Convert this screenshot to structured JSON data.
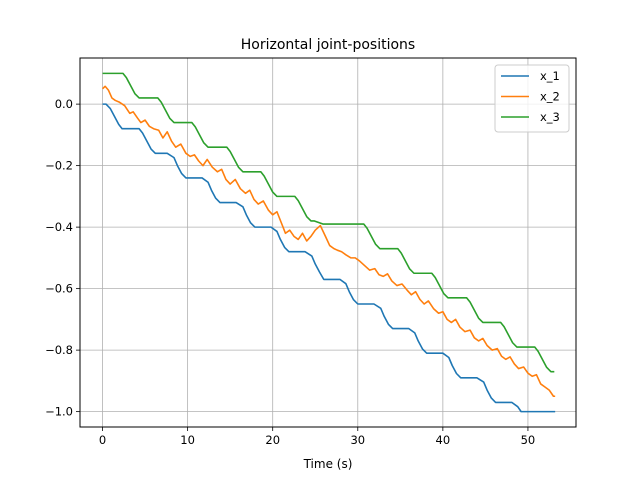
{
  "chart_data": {
    "type": "line",
    "title": "Horizontal joint-positions",
    "xlabel": "Time (s)",
    "ylabel": "",
    "xlim": [
      -2.65,
      55.65
    ],
    "ylim": [
      -1.05,
      0.15
    ],
    "xticks": [
      0,
      10,
      20,
      30,
      40,
      50
    ],
    "yticks": [
      0.0,
      -0.2,
      -0.4,
      -0.6,
      -0.8,
      -1.0
    ],
    "xtick_labels": [
      "0",
      "10",
      "20",
      "30",
      "40",
      "50"
    ],
    "ytick_labels": [
      "0.0",
      "−0.2",
      "−0.4",
      "−0.6",
      "−0.8",
      "−1.0"
    ],
    "grid": true,
    "legend": {
      "position": "top-right"
    },
    "series": [
      {
        "name": "x_1",
        "color": "#1f77b4",
        "x": [
          0,
          0.4,
          0.9,
          1.4,
          1.9,
          2.3,
          3.3,
          4.3,
          4.7,
          5.2,
          5.7,
          6.2,
          6.6,
          7.6,
          8.4,
          8.8,
          9.3,
          9.8,
          10.3,
          10.7,
          11.7,
          12.4,
          12.8,
          13.3,
          13.8,
          14.3,
          14.7,
          15.7,
          16.5,
          16.9,
          17.4,
          17.9,
          18.4,
          18.8,
          19.8,
          20.5,
          20.9,
          21.4,
          21.9,
          22.4,
          22.8,
          23.8,
          24.6,
          25.0,
          25.5,
          26.0,
          26.5,
          26.9,
          27.9,
          28.6,
          29.0,
          29.5,
          30.0,
          30.5,
          30.9,
          31.9,
          32.7,
          33.1,
          33.6,
          34.1,
          34.6,
          35.0,
          36.0,
          36.7,
          37.1,
          37.6,
          38.1,
          38.6,
          39.0,
          40.0,
          40.7,
          41.1,
          41.6,
          42.1,
          42.6,
          43.0,
          44.0,
          44.8,
          45.2,
          45.7,
          46.2,
          46.7,
          47.1,
          48.1,
          48.8,
          49.2,
          49.7,
          50.2,
          50.7,
          51.1,
          52.1,
          53.2
        ],
        "y": [
          0.0,
          0.0,
          -0.014,
          -0.04,
          -0.066,
          -0.08,
          -0.08,
          -0.08,
          -0.094,
          -0.12,
          -0.146,
          -0.16,
          -0.16,
          -0.16,
          -0.174,
          -0.2,
          -0.226,
          -0.24,
          -0.24,
          -0.24,
          -0.24,
          -0.254,
          -0.28,
          -0.306,
          -0.32,
          -0.32,
          -0.32,
          -0.32,
          -0.334,
          -0.36,
          -0.386,
          -0.4,
          -0.4,
          -0.4,
          -0.4,
          -0.414,
          -0.44,
          -0.466,
          -0.48,
          -0.48,
          -0.48,
          -0.48,
          -0.494,
          -0.52,
          -0.546,
          -0.57,
          -0.57,
          -0.57,
          -0.57,
          -0.584,
          -0.61,
          -0.636,
          -0.65,
          -0.65,
          -0.65,
          -0.65,
          -0.664,
          -0.69,
          -0.716,
          -0.73,
          -0.73,
          -0.73,
          -0.73,
          -0.744,
          -0.77,
          -0.796,
          -0.81,
          -0.81,
          -0.81,
          -0.81,
          -0.824,
          -0.85,
          -0.876,
          -0.89,
          -0.89,
          -0.89,
          -0.89,
          -0.904,
          -0.93,
          -0.956,
          -0.97,
          -0.97,
          -0.97,
          -0.97,
          -0.984,
          -1.0,
          -1.0,
          -1.0,
          -1.0,
          -1.0,
          -1.0,
          -1.0
        ]
      },
      {
        "name": "x_2",
        "color": "#ff7f0e",
        "x": [
          0,
          0.3,
          0.7,
          1.1,
          1.5,
          2.0,
          2.6,
          3.2,
          3.6,
          4.1,
          4.5,
          5.0,
          5.5,
          6.0,
          6.6,
          7.1,
          7.6,
          8.1,
          8.6,
          9.2,
          9.8,
          10.3,
          10.8,
          11.3,
          11.8,
          12.3,
          12.9,
          13.5,
          14.0,
          14.5,
          15.0,
          15.6,
          16.2,
          16.8,
          17.3,
          17.8,
          18.3,
          18.9,
          19.5,
          20.0,
          20.5,
          21.0,
          21.5,
          22.0,
          22.5,
          23.0,
          23.5,
          24.0,
          24.5,
          25.0,
          25.6,
          26.2,
          26.7,
          27.2,
          27.6,
          28.1,
          28.6,
          29.2,
          29.7,
          30.2,
          30.8,
          31.4,
          32.0,
          32.5,
          33.0,
          33.5,
          34.0,
          34.6,
          35.2,
          35.8,
          36.3,
          36.8,
          37.3,
          37.8,
          38.3,
          38.9,
          39.5,
          40.0,
          40.5,
          41.0,
          41.5,
          42.0,
          42.6,
          43.2,
          43.7,
          44.2,
          44.7,
          45.2,
          45.8,
          46.4,
          46.9,
          47.4,
          47.9,
          48.4,
          48.9,
          49.5,
          50.0,
          50.5,
          51.0,
          51.5,
          52.0,
          52.5,
          53.0,
          53.2
        ],
        "y": [
          0.05,
          0.058,
          0.045,
          0.02,
          0.012,
          0.006,
          -0.005,
          -0.03,
          -0.025,
          -0.045,
          -0.06,
          -0.052,
          -0.072,
          -0.08,
          -0.085,
          -0.11,
          -0.09,
          -0.12,
          -0.14,
          -0.13,
          -0.16,
          -0.17,
          -0.165,
          -0.185,
          -0.2,
          -0.18,
          -0.205,
          -0.22,
          -0.212,
          -0.245,
          -0.26,
          -0.245,
          -0.275,
          -0.29,
          -0.28,
          -0.31,
          -0.325,
          -0.315,
          -0.345,
          -0.36,
          -0.35,
          -0.385,
          -0.42,
          -0.41,
          -0.43,
          -0.44,
          -0.42,
          -0.445,
          -0.43,
          -0.41,
          -0.395,
          -0.43,
          -0.46,
          -0.47,
          -0.475,
          -0.48,
          -0.49,
          -0.5,
          -0.5,
          -0.51,
          -0.525,
          -0.54,
          -0.535,
          -0.555,
          -0.56,
          -0.552,
          -0.575,
          -0.59,
          -0.585,
          -0.605,
          -0.62,
          -0.61,
          -0.635,
          -0.65,
          -0.64,
          -0.665,
          -0.68,
          -0.675,
          -0.7,
          -0.71,
          -0.7,
          -0.725,
          -0.74,
          -0.735,
          -0.76,
          -0.77,
          -0.762,
          -0.785,
          -0.8,
          -0.795,
          -0.82,
          -0.83,
          -0.822,
          -0.845,
          -0.86,
          -0.855,
          -0.875,
          -0.885,
          -0.88,
          -0.91,
          -0.92,
          -0.93,
          -0.95,
          -0.95
        ]
      },
      {
        "name": "x_3",
        "color": "#2ca02c",
        "x": [
          0,
          1.2,
          2.4,
          2.8,
          3.3,
          3.8,
          4.3,
          4.7,
          5.7,
          6.5,
          6.9,
          7.4,
          7.9,
          8.4,
          8.8,
          9.8,
          10.5,
          10.9,
          11.4,
          11.9,
          12.4,
          12.8,
          13.8,
          14.6,
          15.0,
          15.5,
          16.0,
          16.5,
          16.9,
          17.9,
          18.6,
          19.0,
          19.5,
          20.0,
          20.5,
          20.9,
          21.9,
          22.6,
          23.0,
          23.5,
          24.0,
          24.5,
          24.9,
          25.9,
          26.7,
          27.1,
          27.6,
          28.1,
          28.6,
          29.0,
          30.0,
          30.7,
          31.1,
          31.6,
          32.1,
          32.6,
          33.0,
          34.0,
          34.7,
          35.1,
          35.6,
          36.1,
          36.6,
          37.0,
          38.0,
          38.7,
          39.1,
          39.6,
          40.1,
          40.6,
          41.0,
          42.0,
          42.8,
          43.2,
          43.7,
          44.2,
          44.7,
          45.1,
          46.1,
          46.8,
          47.2,
          47.7,
          48.2,
          48.7,
          49.1,
          50.1,
          50.8,
          51.2,
          51.7,
          52.2,
          52.7,
          53.1
        ],
        "y": [
          0.1,
          0.1,
          0.1,
          0.086,
          0.06,
          0.034,
          0.02,
          0.02,
          0.02,
          0.02,
          0.006,
          -0.02,
          -0.046,
          -0.06,
          -0.06,
          -0.06,
          -0.06,
          -0.074,
          -0.1,
          -0.126,
          -0.14,
          -0.14,
          -0.14,
          -0.14,
          -0.154,
          -0.18,
          -0.206,
          -0.22,
          -0.22,
          -0.22,
          -0.22,
          -0.234,
          -0.26,
          -0.286,
          -0.3,
          -0.3,
          -0.3,
          -0.3,
          -0.314,
          -0.34,
          -0.366,
          -0.38,
          -0.38,
          -0.39,
          -0.39,
          -0.39,
          -0.39,
          -0.39,
          -0.39,
          -0.39,
          -0.39,
          -0.39,
          -0.404,
          -0.43,
          -0.456,
          -0.47,
          -0.47,
          -0.47,
          -0.47,
          -0.484,
          -0.51,
          -0.536,
          -0.55,
          -0.55,
          -0.55,
          -0.55,
          -0.564,
          -0.59,
          -0.616,
          -0.63,
          -0.63,
          -0.63,
          -0.63,
          -0.644,
          -0.67,
          -0.696,
          -0.71,
          -0.71,
          -0.71,
          -0.71,
          -0.724,
          -0.75,
          -0.776,
          -0.79,
          -0.79,
          -0.79,
          -0.79,
          -0.804,
          -0.83,
          -0.856,
          -0.87,
          -0.87
        ]
      }
    ]
  }
}
